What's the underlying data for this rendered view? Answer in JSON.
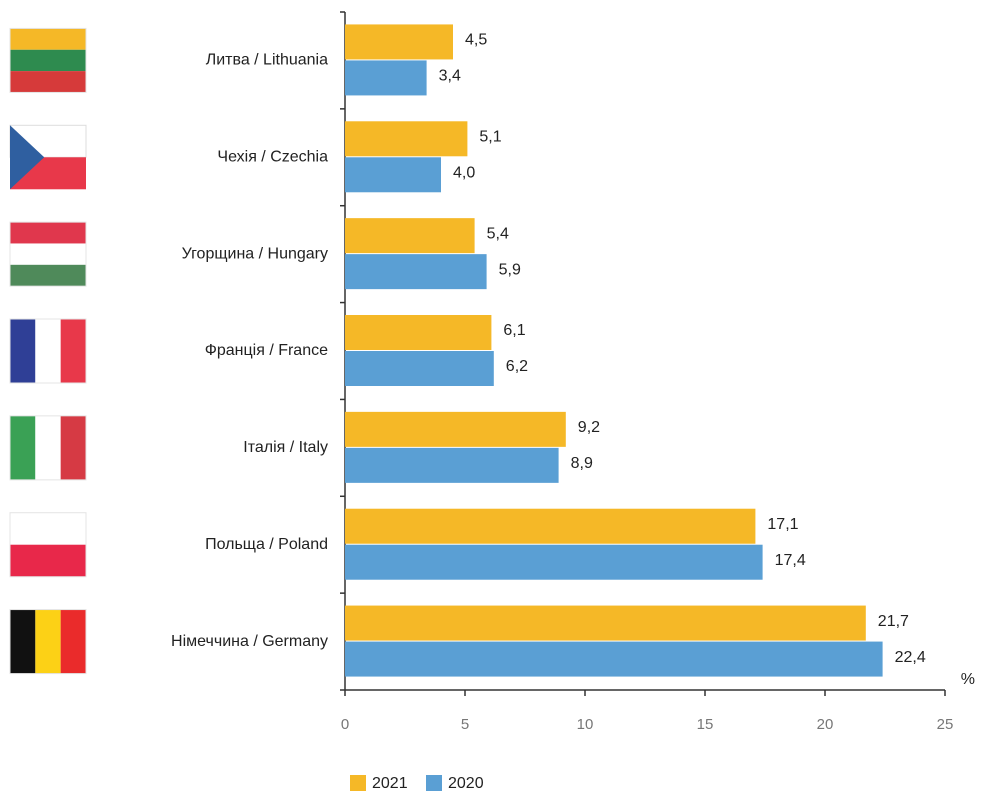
{
  "chart_data": {
    "type": "barh",
    "categories": [
      "Литва / Lithuania",
      "Чехія / Czechia",
      "Угорщина / Hungary",
      "Франція / France",
      "Італія / Italy",
      "Польща / Poland",
      "Німеччина / Germany"
    ],
    "series": [
      {
        "name": "2021",
        "color": "#f5b827",
        "values": [
          4.5,
          5.1,
          5.4,
          6.1,
          9.2,
          17.1,
          21.7
        ],
        "value_labels": [
          "4,5",
          "5,1",
          "5,4",
          "6,1",
          "9,2",
          "17,1",
          "21,7"
        ]
      },
      {
        "name": "2020",
        "color": "#5a9fd4",
        "values": [
          3.4,
          4.0,
          5.9,
          6.2,
          8.9,
          17.4,
          22.4
        ],
        "value_labels": [
          "3,4",
          "4,0",
          "5,9",
          "6,2",
          "8,9",
          "17,4",
          "22,4"
        ]
      }
    ],
    "xlabel": "%",
    "xlim": [
      0,
      25
    ],
    "xticks": [
      0,
      5,
      10,
      15,
      20,
      25
    ],
    "legend": "bottom"
  }
}
